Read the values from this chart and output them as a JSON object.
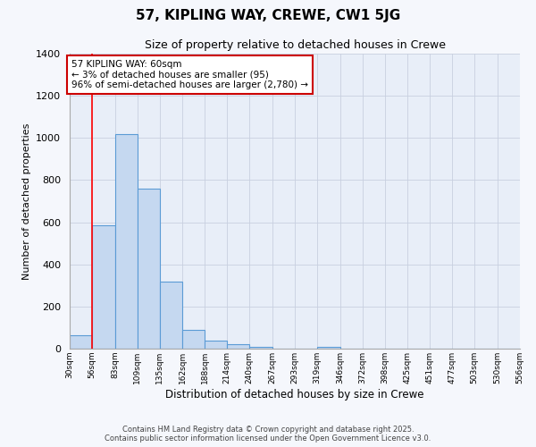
{
  "title": "57, KIPLING WAY, CREWE, CW1 5JG",
  "subtitle": "Size of property relative to detached houses in Crewe",
  "xlabel": "Distribution of detached houses by size in Crewe",
  "ylabel": "Number of detached properties",
  "bar_values": [
    65,
    585,
    1020,
    760,
    320,
    90,
    40,
    20,
    10,
    0,
    0,
    10,
    0,
    0,
    0,
    0,
    0,
    0,
    0,
    0
  ],
  "bin_edges": [
    30,
    56,
    83,
    109,
    135,
    162,
    188,
    214,
    240,
    267,
    293,
    319,
    346,
    372,
    398,
    425,
    451,
    477,
    503,
    530,
    556
  ],
  "tick_labels": [
    "30sqm",
    "56sqm",
    "83sqm",
    "109sqm",
    "135sqm",
    "162sqm",
    "188sqm",
    "214sqm",
    "240sqm",
    "267sqm",
    "293sqm",
    "319sqm",
    "346sqm",
    "372sqm",
    "398sqm",
    "425sqm",
    "451sqm",
    "477sqm",
    "503sqm",
    "530sqm",
    "556sqm"
  ],
  "bar_color": "#c5d8f0",
  "bar_edge_color": "#5b9bd5",
  "red_line_x": 56,
  "ylim": [
    0,
    1400
  ],
  "yticks": [
    0,
    200,
    400,
    600,
    800,
    1000,
    1200,
    1400
  ],
  "annotation_title": "57 KIPLING WAY: 60sqm",
  "annotation_line1": "← 3% of detached houses are smaller (95)",
  "annotation_line2": "96% of semi-detached houses are larger (2,780) →",
  "annotation_box_color": "#ffffff",
  "annotation_box_edge": "#cc0000",
  "bg_color": "#e8eef8",
  "grid_color": "#c8d0e0",
  "fig_bg": "#f5f7fc",
  "footer1": "Contains HM Land Registry data © Crown copyright and database right 2025.",
  "footer2": "Contains public sector information licensed under the Open Government Licence v3.0."
}
